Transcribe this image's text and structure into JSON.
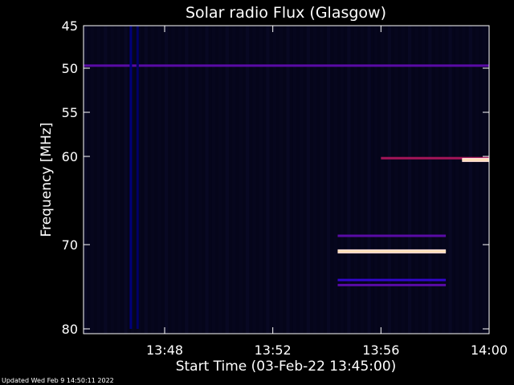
{
  "chart_data": {
    "type": "heatmap",
    "title": "Solar radio Flux (Glasgow)",
    "xlabel": "Start Time (03-Feb-22 13:45:00)",
    "ylabel": "Frequency [MHz]",
    "xlim": [
      "13:45:00",
      "14:00:00"
    ],
    "ylim": [
      45,
      80
    ],
    "x_ticks": [
      "13:48",
      "13:52",
      "13:56",
      "14:00"
    ],
    "y_ticks": [
      45,
      50,
      55,
      60,
      70,
      80
    ],
    "background_color": "#05051a",
    "colormap": [
      "#000010",
      "#0000ff",
      "#ff2000",
      "#ffffff"
    ],
    "features": [
      {
        "kind": "horizontal-band",
        "freq_mhz": 49.7,
        "t_start": "13:45:00",
        "t_end": "14:00:00",
        "intensity": 0.45
      },
      {
        "kind": "horizontal-band",
        "freq_mhz": 60.2,
        "t_start": "13:56:00",
        "t_end": "14:00:00",
        "intensity": 0.55
      },
      {
        "kind": "horizontal-band",
        "freq_mhz": 60.4,
        "t_start": "13:59:00",
        "t_end": "14:00:00",
        "intensity": 0.95
      },
      {
        "kind": "horizontal-band",
        "freq_mhz": 69.0,
        "t_start": "13:54:24",
        "t_end": "13:58:24",
        "intensity": 0.45
      },
      {
        "kind": "horizontal-band",
        "freq_mhz": 70.8,
        "t_start": "13:54:24",
        "t_end": "13:58:24",
        "intensity": 0.95
      },
      {
        "kind": "horizontal-band",
        "freq_mhz": 74.2,
        "t_start": "13:54:24",
        "t_end": "13:58:24",
        "intensity": 0.4
      },
      {
        "kind": "horizontal-band",
        "freq_mhz": 74.8,
        "t_start": "13:54:24",
        "t_end": "13:58:24",
        "intensity": 0.45
      },
      {
        "kind": "vertical-band",
        "t": "13:46:45",
        "f_start": 45,
        "f_end": 80,
        "intensity": 0.15
      },
      {
        "kind": "vertical-band",
        "t": "13:47:00",
        "f_start": 45,
        "f_end": 80,
        "intensity": 0.12
      }
    ]
  },
  "footer": {
    "updated": "Updated Wed Feb  9 14:50:11 2022"
  }
}
